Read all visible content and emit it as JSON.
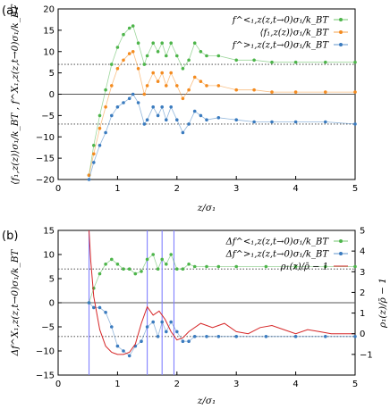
{
  "chart_data": [
    {
      "panel": "(a)",
      "type": "scatter",
      "xlabel": "z/σ₁",
      "ylabel": "⟨f₁,z(z)⟩σ₁/k_BT ,  f^X₁,z(z,t→0)σ₁/k_BT",
      "xlim": [
        0,
        5
      ],
      "ylim": [
        -20,
        20
      ],
      "xticks": [
        "0",
        "1",
        "2",
        "3",
        "4",
        "5"
      ],
      "yticks": [
        "−20",
        "−15",
        "−10",
        "−5",
        "0",
        "5",
        "10",
        "15",
        "20"
      ],
      "legend_position": "top-right",
      "reference_lines": [
        {
          "style": "solid",
          "y": 0
        },
        {
          "style": "dotted",
          "y": 7
        },
        {
          "style": "dotted",
          "y": -7
        }
      ],
      "series": [
        {
          "name": "f^<₁,z(z,t→0)σ₁/k_BT",
          "color": "#4db54a",
          "x": [
            0.52,
            0.6,
            0.7,
            0.8,
            0.9,
            1.0,
            1.1,
            1.2,
            1.26,
            1.35,
            1.45,
            1.5,
            1.6,
            1.68,
            1.75,
            1.82,
            1.9,
            2.0,
            2.1,
            2.2,
            2.3,
            2.4,
            2.5,
            2.7,
            3.0,
            3.3,
            3.6,
            4.0,
            4.5,
            5.0
          ],
          "y": [
            -19,
            -12,
            -5,
            1,
            7,
            11,
            14,
            15.5,
            16,
            12,
            7,
            9,
            12,
            10,
            12,
            9,
            12,
            9,
            6,
            8,
            12,
            10,
            9,
            9,
            8,
            8,
            7.5,
            7.5,
            7.5,
            7.5
          ]
        },
        {
          "name": "⟨f₁,z(z)⟩σ₁/k_BT",
          "color": "#f48b1f",
          "x": [
            0.52,
            0.6,
            0.7,
            0.8,
            0.9,
            1.0,
            1.1,
            1.2,
            1.26,
            1.35,
            1.45,
            1.5,
            1.6,
            1.68,
            1.75,
            1.82,
            1.9,
            2.0,
            2.1,
            2.2,
            2.3,
            2.4,
            2.5,
            2.7,
            3.0,
            3.3,
            3.6,
            4.0,
            4.5,
            5.0
          ],
          "y": [
            -19,
            -14,
            -8,
            -3,
            2,
            6,
            8,
            9.5,
            10,
            6,
            0,
            2,
            5,
            3,
            5,
            2,
            5,
            2,
            -1,
            1,
            4,
            3,
            2,
            2,
            1,
            1,
            0.5,
            0.5,
            0.5,
            0.5
          ]
        },
        {
          "name": "f^>₁,z(z,t→0)σ₁/k_BT",
          "color": "#3a7bbf",
          "x": [
            0.52,
            0.6,
            0.7,
            0.8,
            0.9,
            1.0,
            1.1,
            1.2,
            1.26,
            1.35,
            1.45,
            1.5,
            1.6,
            1.68,
            1.75,
            1.82,
            1.9,
            2.0,
            2.1,
            2.2,
            2.3,
            2.4,
            2.5,
            2.7,
            3.0,
            3.3,
            3.6,
            4.0,
            4.5,
            5.0
          ],
          "y": [
            -20,
            -16,
            -12,
            -9,
            -5,
            -3,
            -2,
            -1,
            0,
            -2,
            -7,
            -6,
            -3,
            -5,
            -3,
            -6,
            -3,
            -6,
            -9,
            -7,
            -4,
            -5,
            -6,
            -5.5,
            -6,
            -6.5,
            -6.5,
            -6.5,
            -6.5,
            -7
          ]
        }
      ]
    },
    {
      "panel": "(b)",
      "type": "scatter",
      "xlabel": "z/σ₁",
      "ylabel": "Δf^X₁,z(z,t→0)σ₁/k_BT",
      "y2label": "ρ₁(z)/ρ̄ − 1",
      "xlim": [
        0,
        5
      ],
      "ylim": [
        -15,
        15
      ],
      "y2lim": [
        -2,
        5
      ],
      "xticks": [
        "0",
        "1",
        "2",
        "3",
        "4",
        "5"
      ],
      "yticks": [
        "−15",
        "−10",
        "−5",
        "0",
        "5",
        "10",
        "15"
      ],
      "y2ticks": [
        "−1",
        "0",
        "1",
        "2",
        "3",
        "4",
        "5"
      ],
      "legend_position": "top-right",
      "reference_lines": [
        {
          "style": "solid",
          "y": 0
        },
        {
          "style": "dotted",
          "y": 7
        },
        {
          "style": "dotted",
          "y": -7
        }
      ],
      "vertical_lines_x": [
        0.52,
        1.5,
        1.75,
        1.95
      ],
      "series": [
        {
          "name": "Δf^<₁,z(z,t→0)σ₁/k_BT",
          "color": "#4db54a",
          "x": [
            0.52,
            0.6,
            0.7,
            0.8,
            0.9,
            1.0,
            1.1,
            1.2,
            1.3,
            1.4,
            1.5,
            1.6,
            1.68,
            1.75,
            1.82,
            1.9,
            2.0,
            2.1,
            2.2,
            2.3,
            2.5,
            2.7,
            3.0,
            3.5,
            4.0,
            4.5,
            5.0
          ],
          "y": [
            0,
            3,
            6,
            8,
            9,
            8,
            7,
            7,
            6,
            6.5,
            9,
            10,
            7,
            9,
            8,
            10,
            7,
            7,
            8,
            7.5,
            7.5,
            7.5,
            7.5,
            7.5,
            7.5,
            7.5,
            7.5
          ]
        },
        {
          "name": "Δf^>₁,z(z,t→0)σ₁/k_BT",
          "color": "#3a7bbf",
          "x": [
            0.52,
            0.6,
            0.7,
            0.8,
            0.9,
            1.0,
            1.1,
            1.2,
            1.3,
            1.4,
            1.5,
            1.6,
            1.68,
            1.75,
            1.82,
            1.9,
            2.0,
            2.1,
            2.2,
            2.3,
            2.5,
            2.7,
            3.0,
            3.5,
            4.0,
            4.5,
            5.0
          ],
          "y": [
            0,
            -1,
            -1,
            -2,
            -5,
            -9,
            -10,
            -11,
            -9,
            -8,
            -5,
            -4,
            -7,
            -4,
            -6,
            -4,
            -6,
            -8,
            -8,
            -7,
            -7,
            -7,
            -7,
            -7,
            -7,
            -7,
            -7
          ]
        },
        {
          "name": "ρ₁(z)/ρ̄ − 1",
          "color": "#d62728",
          "axis": "right",
          "x": [
            0.52,
            0.55,
            0.6,
            0.7,
            0.8,
            0.9,
            1.0,
            1.1,
            1.2,
            1.3,
            1.4,
            1.5,
            1.6,
            1.7,
            1.8,
            1.9,
            2.0,
            2.1,
            2.2,
            2.4,
            2.6,
            2.8,
            3.0,
            3.2,
            3.4,
            3.6,
            3.8,
            4.0,
            4.2,
            4.4,
            4.6,
            4.8,
            5.0
          ],
          "y": [
            5,
            3.5,
            1.8,
            0.2,
            -0.6,
            -0.9,
            -1.0,
            -1.0,
            -0.9,
            -0.5,
            0.5,
            1.3,
            0.9,
            1.1,
            0.7,
            0.1,
            -0.3,
            -0.2,
            0.1,
            0.5,
            0.3,
            0.5,
            0.1,
            0.0,
            0.3,
            0.4,
            0.2,
            0.0,
            0.2,
            0.1,
            0.0,
            0.0,
            0.0
          ]
        }
      ]
    }
  ]
}
